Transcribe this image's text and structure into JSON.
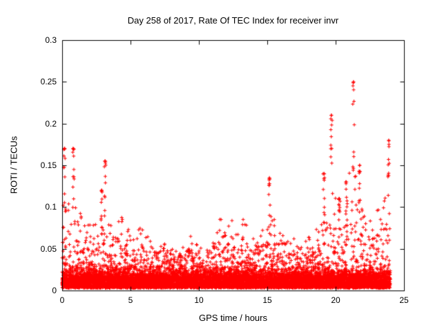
{
  "chart_data": {
    "type": "scatter",
    "title": "Day 258 of 2017, Rate Of TEC Index for receiver invr",
    "xlabel": "GPS time / hours",
    "ylabel": "ROTI / TECUs",
    "xlim": [
      0,
      25
    ],
    "ylim": [
      0,
      0.3
    ],
    "xticks": [
      0,
      5,
      10,
      15,
      20,
      25
    ],
    "xtick_labels": [
      "0",
      "5",
      "10",
      "15",
      "20",
      "25"
    ],
    "yticks": [
      0,
      0.05,
      0.1,
      0.15,
      0.2,
      0.25,
      0.3
    ],
    "ytick_labels": [
      "0",
      "0.05",
      "0.1",
      "0.15",
      "0.2",
      "0.25",
      "0.3"
    ],
    "grid": false,
    "legend": "none",
    "marker": "plus",
    "marker_color": "#ff0000",
    "axis_color": "#000000",
    "data_span": [
      0,
      24
    ],
    "t_start": 0,
    "bin_width": 0.5,
    "baseline_band_max": 0.055,
    "envelope_max": [
      0.17,
      0.17,
      0.1,
      0.08,
      0.08,
      0.12,
      0.155,
      0.08,
      0.09,
      0.08,
      0.065,
      0.075,
      0.065,
      0.06,
      0.065,
      0.06,
      0.06,
      0.055,
      0.065,
      0.055,
      0.055,
      0.06,
      0.07,
      0.095,
      0.085,
      0.07,
      0.09,
      0.065,
      0.07,
      0.08,
      0.135,
      0.09,
      0.08,
      0.065,
      0.065,
      0.06,
      0.065,
      0.08,
      0.14,
      0.21,
      0.11,
      0.13,
      0.25,
      0.15,
      0.09,
      0.085,
      0.1,
      0.18
    ],
    "notable_spikes": [
      {
        "t": 0.7,
        "max": 0.17
      },
      {
        "t": 3.0,
        "max": 0.155
      },
      {
        "t": 15.0,
        "max": 0.135
      },
      {
        "t": 19.1,
        "max": 0.14
      },
      {
        "t": 19.8,
        "max": 0.21
      },
      {
        "t": 21.0,
        "max": 0.25
      },
      {
        "t": 21.3,
        "max": 0.22
      },
      {
        "t": 23.6,
        "max": 0.18
      }
    ]
  }
}
